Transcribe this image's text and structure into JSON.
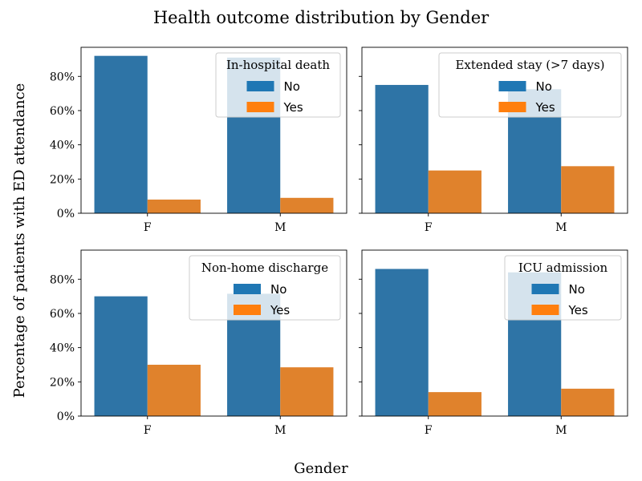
{
  "figure": {
    "title": "Health outcome distribution by Gender",
    "xlabel": "Gender",
    "ylabel": "Percentage of patients with ED attendance"
  },
  "colors": {
    "No": "#2e74a6",
    "Yes": "#e0822c",
    "legend_No": "#1f77b4",
    "legend_Yes": "#ff7f0e"
  },
  "chart_data": [
    {
      "type": "bar",
      "title": "",
      "legend_title": "In-hospital death",
      "legend_position": "top-right",
      "categories": [
        "F",
        "M"
      ],
      "series": [
        {
          "name": "No",
          "values": [
            92,
            91
          ]
        },
        {
          "name": "Yes",
          "values": [
            8,
            9
          ]
        }
      ],
      "ylim": [
        0,
        97
      ],
      "yticks": [
        0,
        20,
        40,
        60,
        80
      ],
      "ytick_labels": [
        "0%",
        "20%",
        "40%",
        "60%",
        "80%"
      ]
    },
    {
      "type": "bar",
      "title": "",
      "legend_title": "Extended stay (>7 days)",
      "legend_position": "top-right",
      "categories": [
        "F",
        "M"
      ],
      "series": [
        {
          "name": "No",
          "values": [
            75,
            72.5
          ]
        },
        {
          "name": "Yes",
          "values": [
            25,
            27.5
          ]
        }
      ],
      "ylim": [
        0,
        97
      ],
      "yticks": [
        0,
        20,
        40,
        60,
        80
      ],
      "ytick_labels": [
        "0%",
        "20%",
        "40%",
        "60%",
        "80%"
      ]
    },
    {
      "type": "bar",
      "title": "",
      "legend_title": "Non-home discharge",
      "legend_position": "top-right",
      "categories": [
        "F",
        "M"
      ],
      "series": [
        {
          "name": "No",
          "values": [
            70,
            71.5
          ]
        },
        {
          "name": "Yes",
          "values": [
            30,
            28.5
          ]
        }
      ],
      "ylim": [
        0,
        97
      ],
      "yticks": [
        0,
        20,
        40,
        60,
        80
      ],
      "ytick_labels": [
        "0%",
        "20%",
        "40%",
        "60%",
        "80%"
      ]
    },
    {
      "type": "bar",
      "title": "",
      "legend_title": "ICU admission",
      "legend_position": "top-right",
      "categories": [
        "F",
        "M"
      ],
      "series": [
        {
          "name": "No",
          "values": [
            86,
            84
          ]
        },
        {
          "name": "Yes",
          "values": [
            14,
            16
          ]
        }
      ],
      "ylim": [
        0,
        97
      ],
      "yticks": [
        0,
        20,
        40,
        60,
        80
      ],
      "ytick_labels": [
        "0%",
        "20%",
        "40%",
        "60%",
        "80%"
      ]
    }
  ]
}
